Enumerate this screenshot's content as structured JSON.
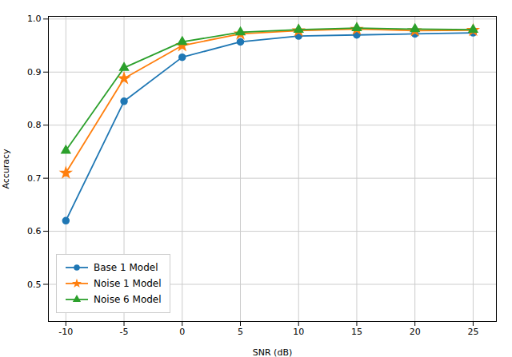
{
  "chart_data": {
    "type": "line",
    "x": [
      -10,
      -5,
      0,
      5,
      10,
      15,
      20,
      25
    ],
    "series": [
      {
        "name": "Base 1 Model",
        "color": "#1f77b4",
        "marker": "circle",
        "values": [
          0.62,
          0.845,
          0.928,
          0.957,
          0.968,
          0.97,
          0.972,
          0.974
        ]
      },
      {
        "name": "Noise 1 Model",
        "color": "#ff7f0e",
        "marker": "star",
        "values": [
          0.71,
          0.888,
          0.95,
          0.972,
          0.978,
          0.981,
          0.978,
          0.979
        ]
      },
      {
        "name": "Noise 6 Model",
        "color": "#2ca02c",
        "marker": "triangle",
        "values": [
          0.752,
          0.908,
          0.957,
          0.975,
          0.98,
          0.983,
          0.981,
          0.98
        ]
      }
    ],
    "x_label": "SNR (dB)",
    "y_label": "Accuracy",
    "xlim": [
      -11.5,
      27
    ],
    "ylim": [
      0.43,
      1.005
    ],
    "xticks": [
      -10,
      -5,
      0,
      5,
      10,
      15,
      20,
      25
    ],
    "yticks": [
      0.5,
      0.6,
      0.7,
      0.8,
      0.9,
      {
        "value": 1.0,
        "label": "1.0"
      }
    ],
    "grid": true,
    "legend": "lower left"
  }
}
